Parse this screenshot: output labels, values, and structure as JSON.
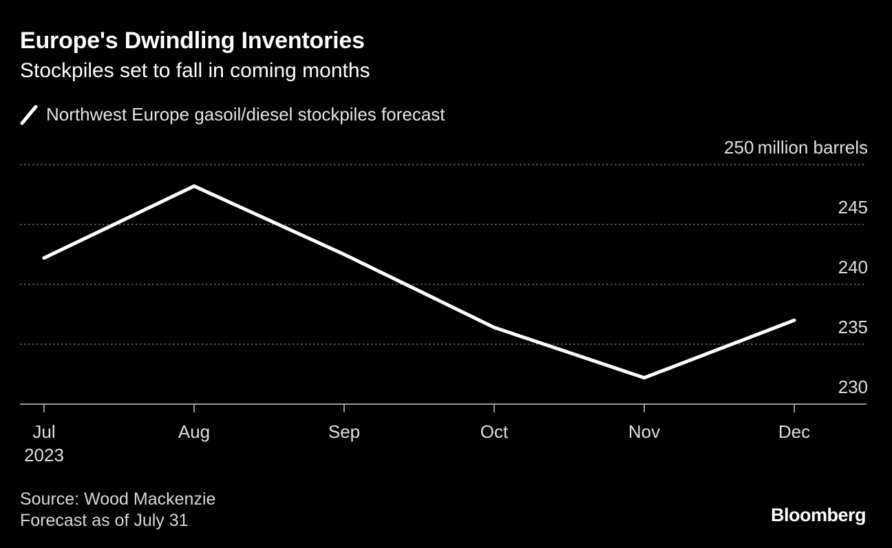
{
  "header": {
    "title": "Europe's Dwindling Inventories",
    "subtitle": "Stockpiles set to fall in coming months"
  },
  "legend": {
    "label": "Northwest Europe gasoil/diesel stockpiles forecast",
    "color": "#ffffff"
  },
  "chart_data": {
    "type": "line",
    "title": "Europe's Dwindling Inventories",
    "subtitle": "Stockpiles set to fall in coming months",
    "categories": [
      "Jul",
      "Aug",
      "Sep",
      "Oct",
      "Nov",
      "Dec"
    ],
    "x_sublabels": [
      "2023",
      "",
      "",
      "",
      "",
      ""
    ],
    "series": [
      {
        "name": "Northwest Europe gasoil/diesel stockpiles forecast",
        "color": "#ffffff",
        "values": [
          242.2,
          248.2,
          242.5,
          236.4,
          232.2,
          237.0
        ]
      }
    ],
    "y_unit_label": "million barrels",
    "y_ticks": [
      230,
      235,
      240,
      245,
      250
    ],
    "ylim": [
      230,
      250
    ],
    "grid": true,
    "grid_style": "dotted",
    "background": "#000000",
    "gridline_color": "#888888",
    "axis_color": "#cccccc",
    "legend_position": "top-left"
  },
  "footer": {
    "source": "Source: Wood Mackenzie",
    "note": "Forecast as of July 31",
    "brand": "Bloomberg"
  }
}
